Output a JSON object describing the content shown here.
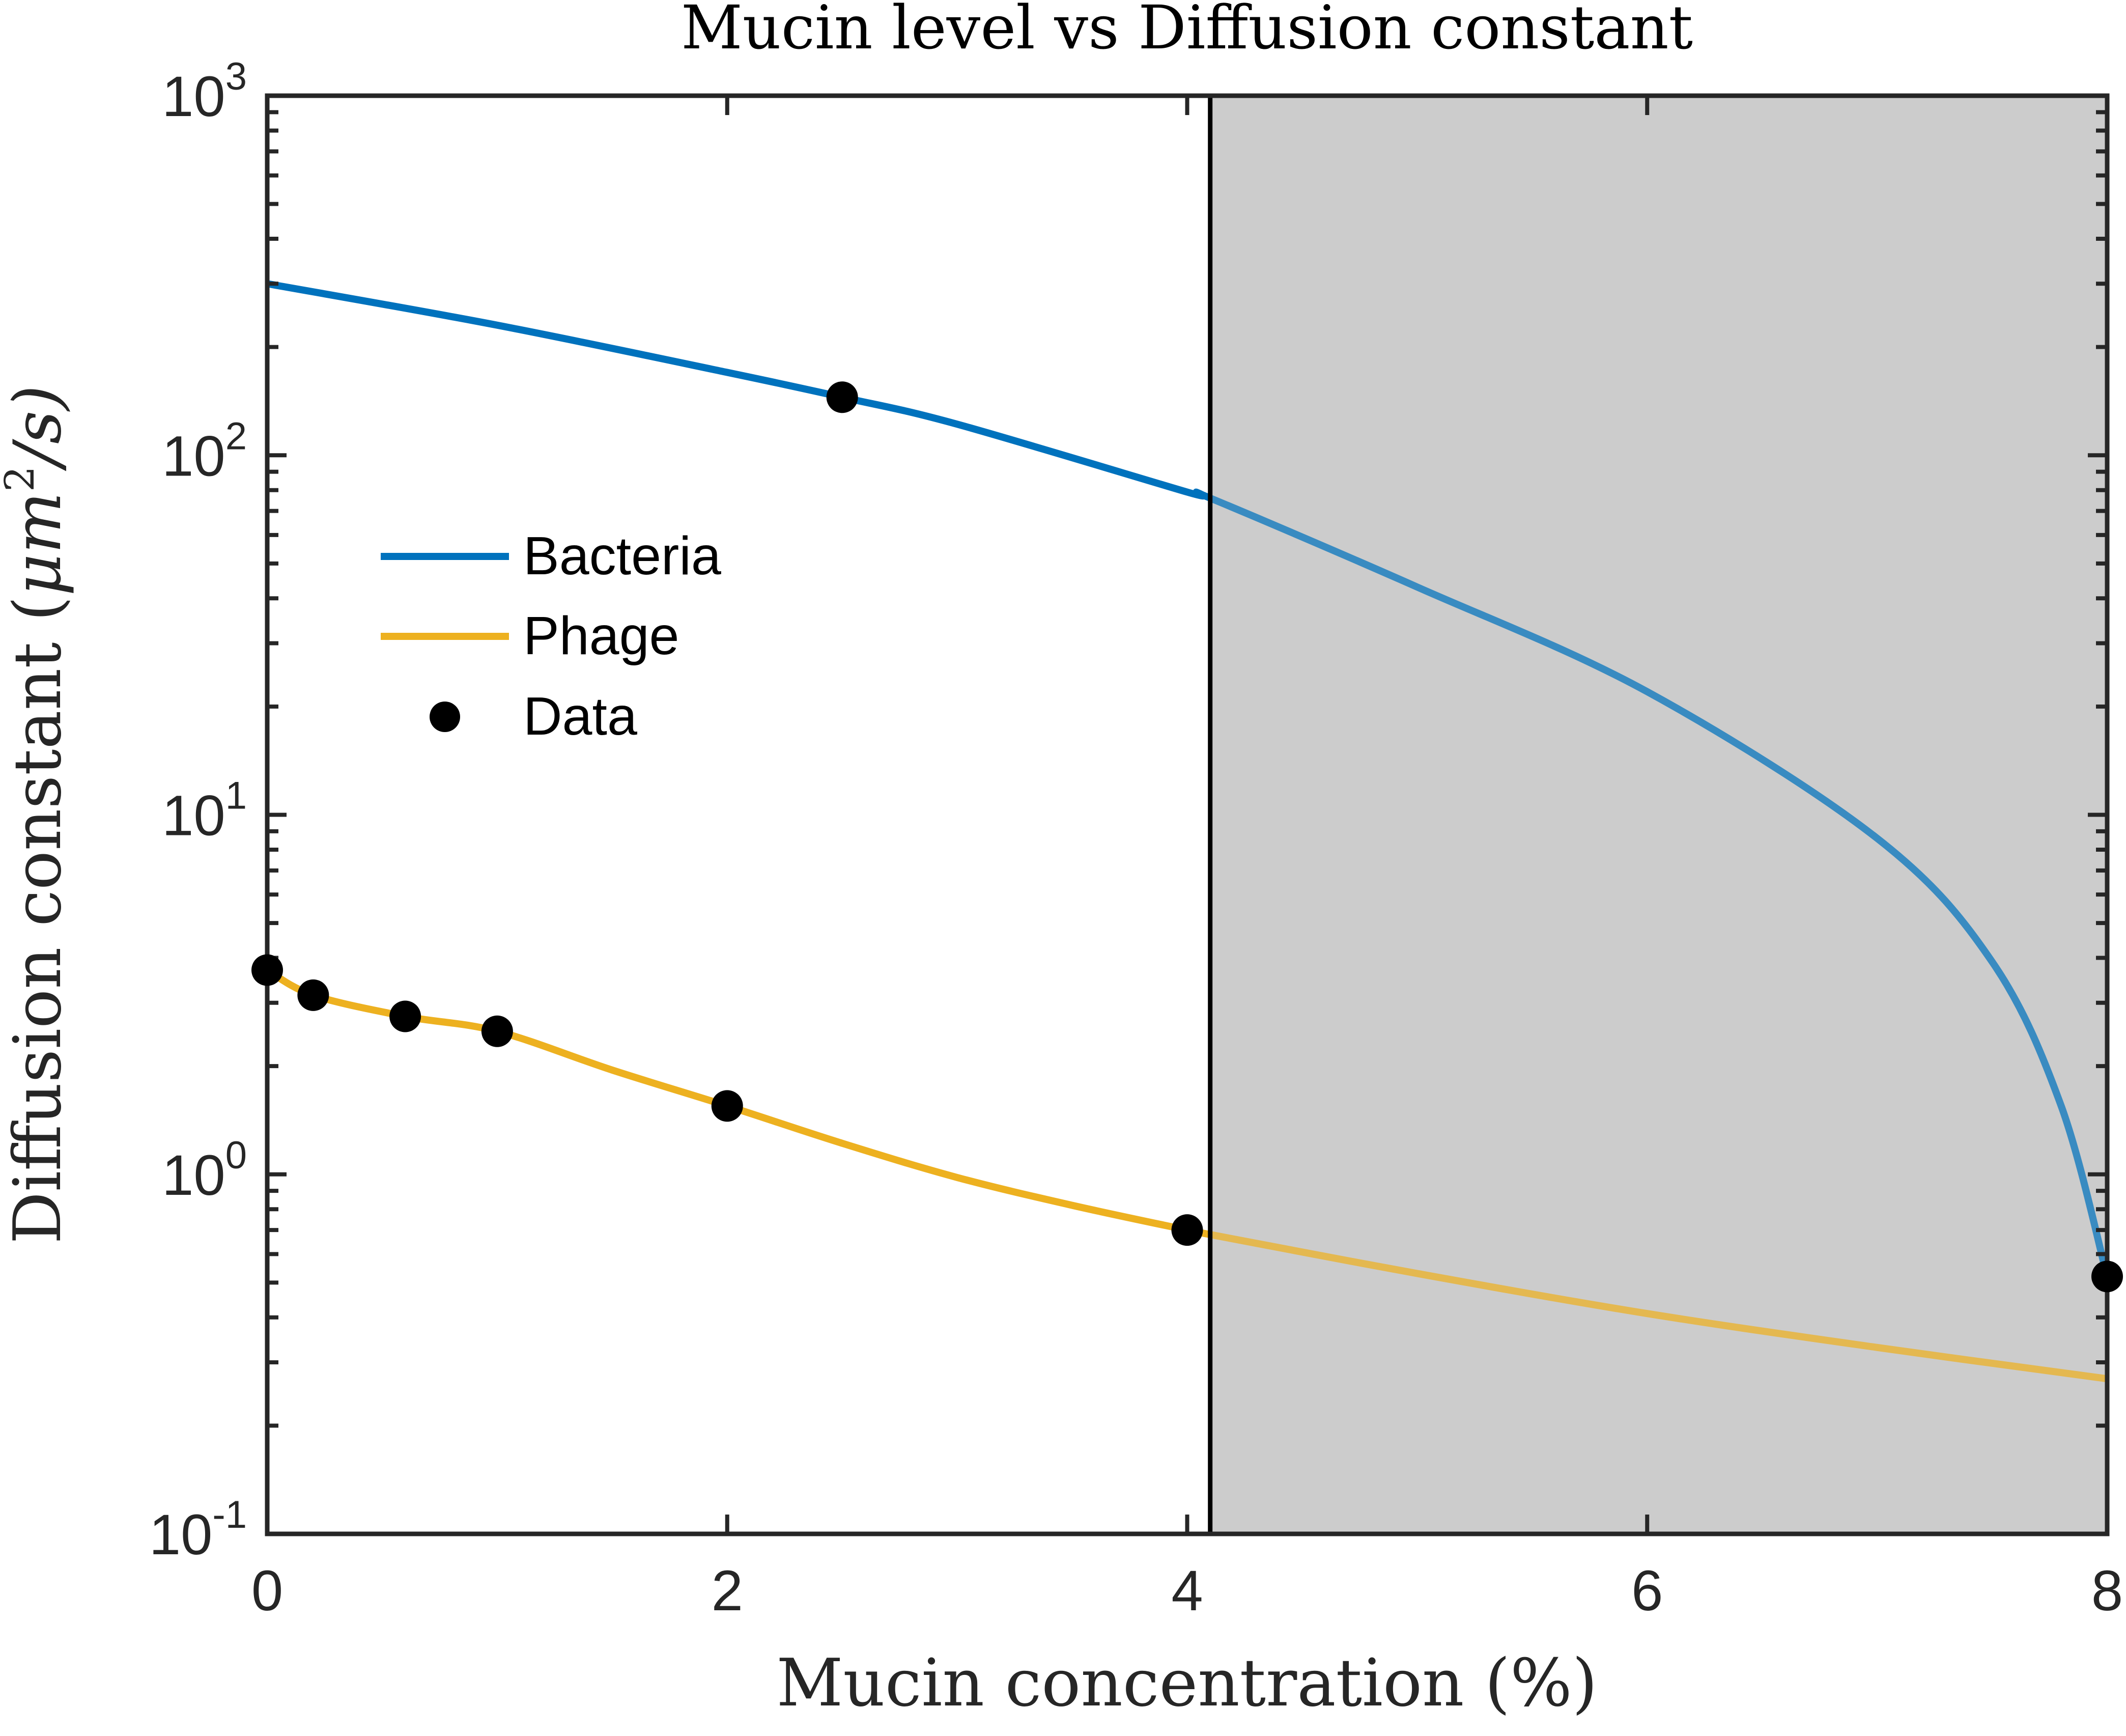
{
  "chart_data": {
    "type": "line",
    "title": "Mucin level vs Diffusion constant",
    "xlabel": "Mucin concentration (%)",
    "ylabel": {
      "prefix": "Diffusion constant (",
      "var": "μm",
      "sup": "2",
      "suffix": "/s)"
    },
    "xlim": [
      0,
      8
    ],
    "ylim": [
      0.1,
      1000
    ],
    "yscale": "log",
    "x_ticks": [
      "0",
      "2",
      "4",
      "6",
      "8"
    ],
    "y_ticks": [
      {
        "base": "10",
        "exp": "-1"
      },
      {
        "base": "10",
        "exp": "0"
      },
      {
        "base": "10",
        "exp": "1"
      },
      {
        "base": "10",
        "exp": "2"
      },
      {
        "base": "10",
        "exp": "3"
      }
    ],
    "grid": false,
    "legend_position": "left",
    "shaded_region": {
      "x_from": 4.1,
      "x_to": 8,
      "color": "#cccccc"
    },
    "series": [
      {
        "name": "Bacteria",
        "color": "#0072BD",
        "x": [
          0,
          1,
          2,
          2.5,
          3,
          4,
          4.1,
          5,
          6,
          7,
          7.5,
          7.8,
          8
        ],
        "y": [
          300,
          230,
          170,
          145,
          122,
          79,
          76,
          43,
          22,
          8.6,
          3.9,
          1.55,
          0.52
        ]
      },
      {
        "name": "Phage",
        "color": "#EDB120",
        "x": [
          0,
          0.2,
          0.6,
          1,
          1.5,
          2,
          2.5,
          3,
          3.5,
          4,
          4.1,
          5,
          6,
          7,
          8
        ],
        "y": [
          3.7,
          3.15,
          2.75,
          2.5,
          1.95,
          1.55,
          1.22,
          0.98,
          0.82,
          0.7,
          0.68,
          0.53,
          0.41,
          0.33,
          0.27
        ]
      },
      {
        "name": "Data",
        "marker": "circle",
        "color": "#000000",
        "x": [
          0,
          0.2,
          0.6,
          1,
          2,
          2.5,
          4,
          8
        ],
        "y": [
          3.7,
          3.15,
          2.75,
          2.5,
          1.55,
          145,
          0.7,
          0.52
        ]
      }
    ]
  }
}
